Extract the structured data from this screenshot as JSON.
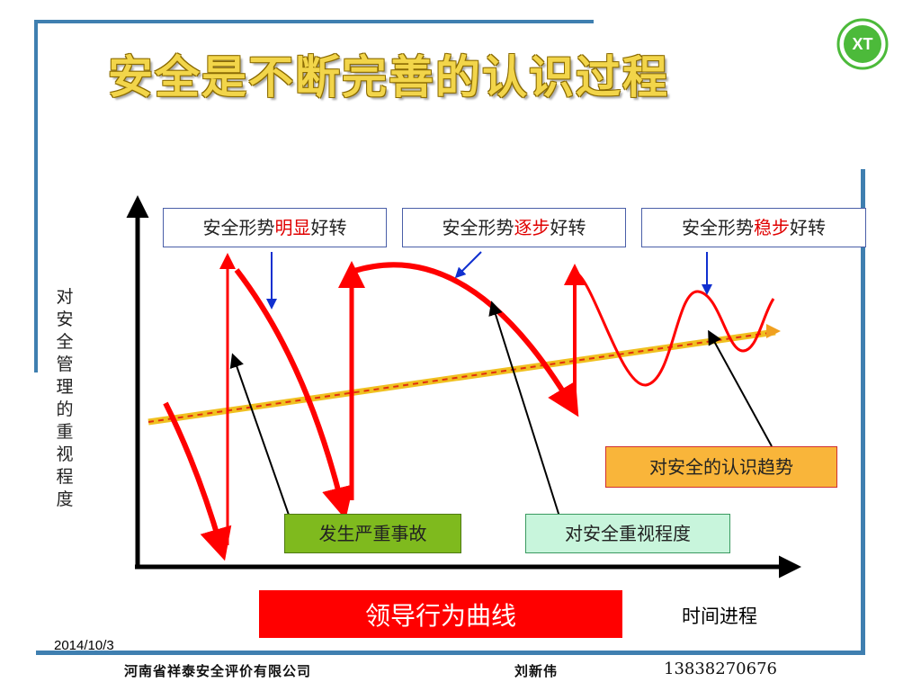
{
  "title": "安全是不断完善的认识过程",
  "logo": {
    "text": "XT",
    "icon": "company-logo-wreath-icon",
    "color": "#4cba3a"
  },
  "y_axis_label": "对安全管理的重视程度",
  "x_axis_label": "时间进程",
  "state_labels": [
    {
      "prefix": "安全形势",
      "highlight": "明显",
      "suffix": "好转"
    },
    {
      "prefix": "安全形势",
      "highlight": "逐步",
      "suffix": "好转"
    },
    {
      "prefix": "安全形势",
      "highlight": "稳步",
      "suffix": "好转"
    }
  ],
  "callouts": {
    "accident": {
      "text": "发生严重事故",
      "color": "#7fba1e"
    },
    "attention": {
      "text": "对安全重视程度",
      "color": "#c8f5dc"
    },
    "trend": {
      "text": "对安全的认识趋势",
      "color": "#f9b53a"
    }
  },
  "legend": {
    "text": "领导行为曲线",
    "color": "#ff0000"
  },
  "footer": {
    "date": "2014/10/3",
    "company": "河南省祥泰安全评价有限公司",
    "name": "刘新伟",
    "phone": "13838270676"
  },
  "colors": {
    "frame": "#3f7fb0",
    "curve": "#ff0000",
    "trend": "#f0c020",
    "arrow_blue": "#1030d0"
  }
}
